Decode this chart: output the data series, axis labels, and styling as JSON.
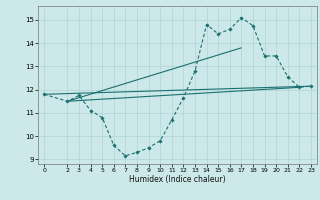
{
  "xlabel": "Humidex (Indice chaleur)",
  "bg_color": "#cce8e8",
  "grid_color": "#b0d4d4",
  "line_color": "#1a7070",
  "xlim": [
    -0.5,
    23.5
  ],
  "ylim": [
    8.8,
    15.6
  ],
  "yticks": [
    9,
    10,
    11,
    12,
    13,
    14,
    15
  ],
  "xticks": [
    0,
    2,
    3,
    4,
    5,
    6,
    7,
    8,
    9,
    10,
    11,
    12,
    13,
    14,
    15,
    16,
    17,
    18,
    19,
    20,
    21,
    22,
    23
  ],
  "curve1_x": [
    0,
    2,
    3,
    4,
    5,
    6,
    7,
    8,
    9,
    10,
    11,
    12,
    13,
    14,
    15,
    16,
    17,
    18,
    19,
    20,
    21,
    22,
    23
  ],
  "curve1_y": [
    11.8,
    11.5,
    11.75,
    11.1,
    10.8,
    9.6,
    9.15,
    9.3,
    9.5,
    9.8,
    10.7,
    11.65,
    12.8,
    14.8,
    14.4,
    14.6,
    15.1,
    14.75,
    13.45,
    13.45,
    12.55,
    12.1,
    12.15
  ],
  "line2_x": [
    0,
    23
  ],
  "line2_y": [
    11.8,
    12.15
  ],
  "line3_x": [
    2,
    22
  ],
  "line3_y": [
    11.5,
    12.1
  ],
  "line4_x": [
    2,
    17
  ],
  "line4_y": [
    11.5,
    13.8
  ]
}
